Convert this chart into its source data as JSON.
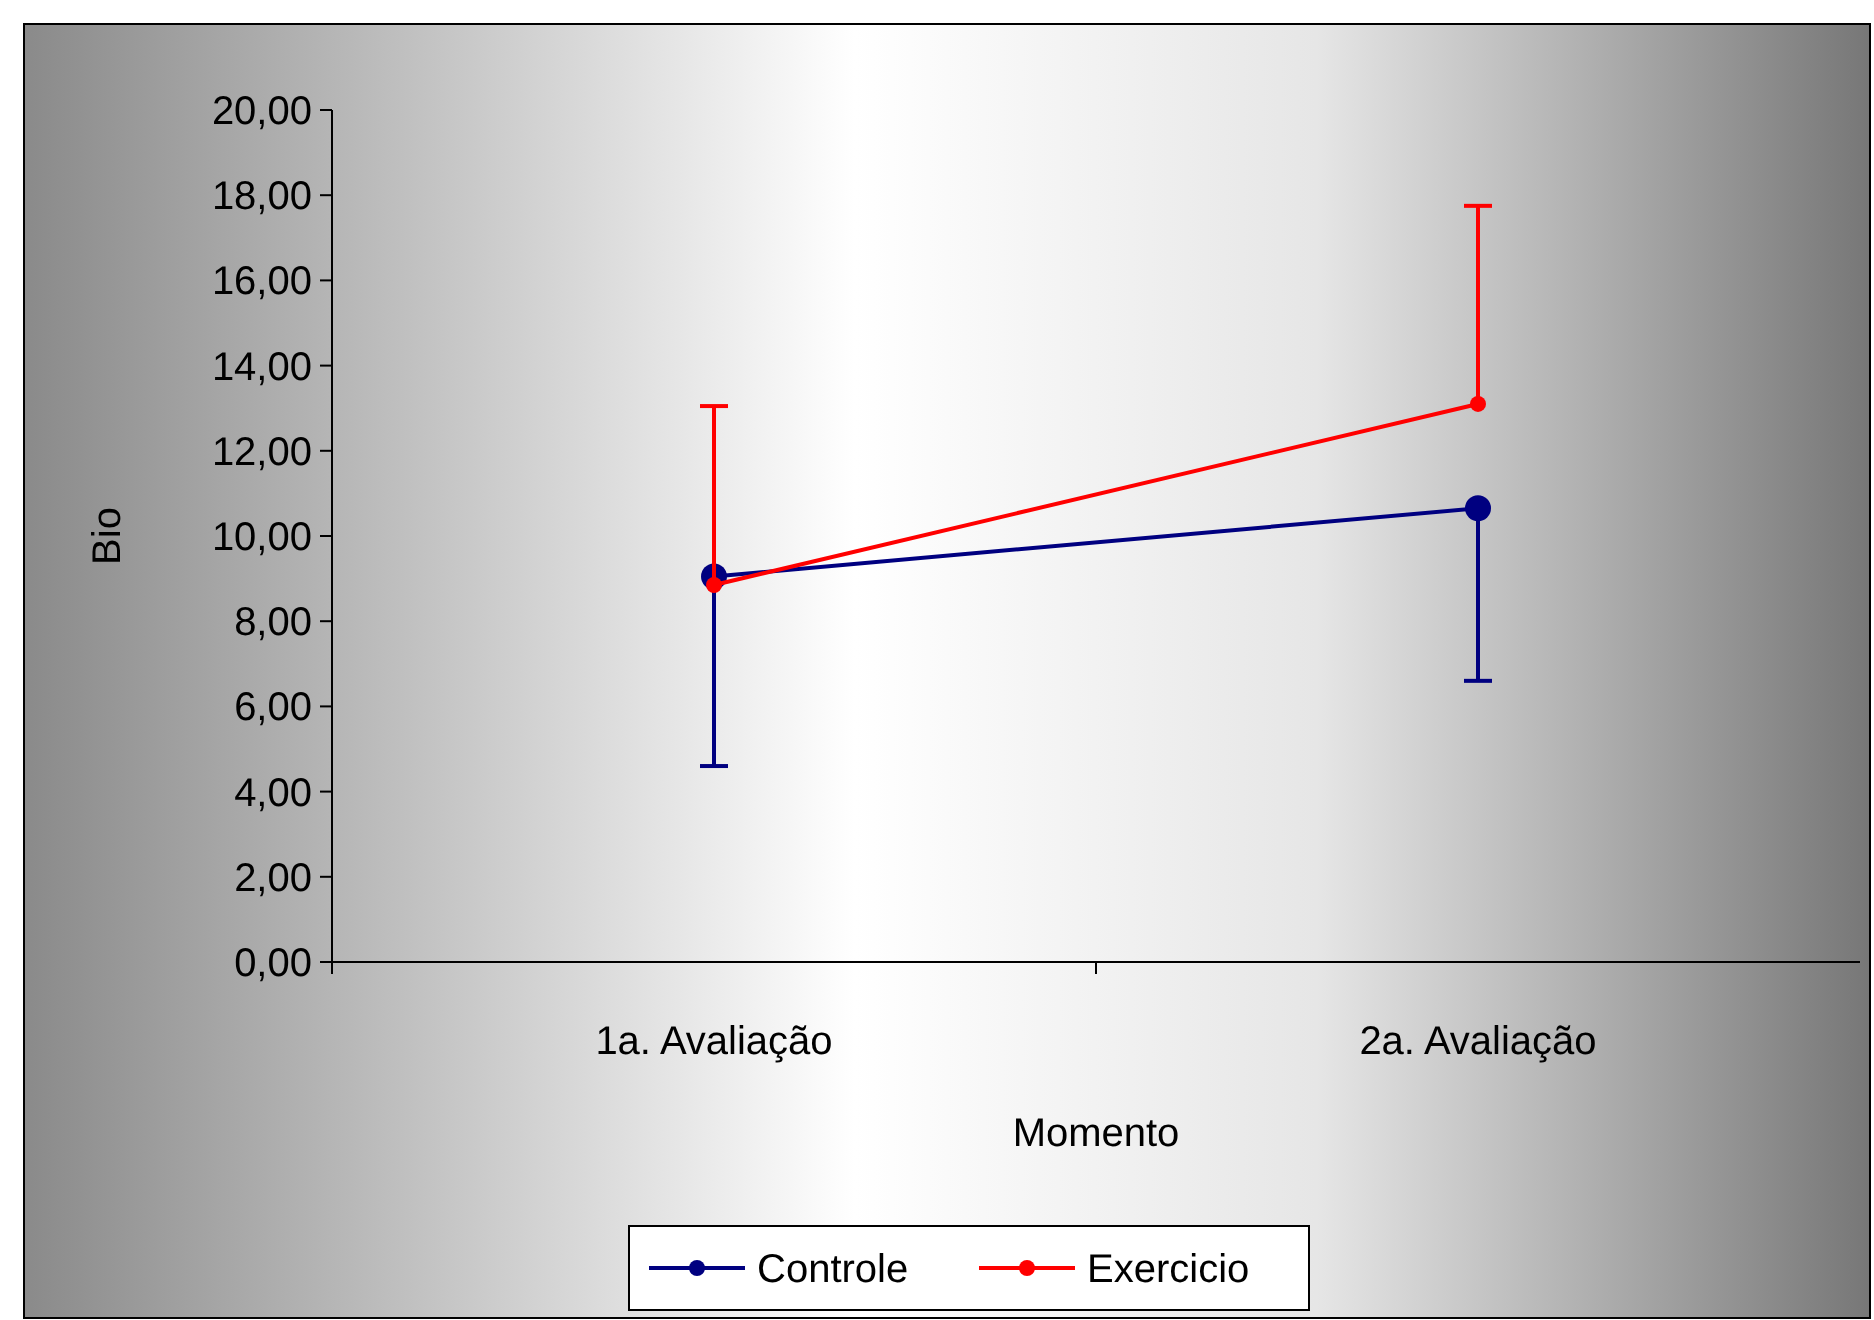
{
  "chart_data": {
    "type": "line",
    "xlabel": "Momento",
    "ylabel": "Bio",
    "categories": [
      "1a. Avaliação",
      "2a. Avaliação"
    ],
    "series": [
      {
        "name": "Controle",
        "color": "#000080",
        "values": [
          9.05,
          10.65
        ],
        "errors": [
          [
            4.6,
            9.05
          ],
          [
            6.6,
            10.65
          ]
        ]
      },
      {
        "name": "Exercicio",
        "color": "#ff0000",
        "values": [
          8.85,
          13.1
        ],
        "errors": [
          [
            8.85,
            13.05
          ],
          [
            13.1,
            17.75
          ]
        ]
      }
    ],
    "ylim": [
      0,
      20
    ],
    "yticks": [
      {
        "value": 0,
        "label": "0,00"
      },
      {
        "value": 2,
        "label": "2,00"
      },
      {
        "value": 4,
        "label": "4,00"
      },
      {
        "value": 6,
        "label": "6,00"
      },
      {
        "value": 8,
        "label": "8,00"
      },
      {
        "value": 10,
        "label": "10,00"
      },
      {
        "value": 12,
        "label": "12,00"
      },
      {
        "value": 14,
        "label": "14,00"
      },
      {
        "value": 16,
        "label": "16,00"
      },
      {
        "value": 18,
        "label": "18,00"
      },
      {
        "value": 20,
        "label": "20,00"
      }
    ],
    "grid": false,
    "legend": "bottom",
    "marker": "circle",
    "line_style": "solid"
  }
}
